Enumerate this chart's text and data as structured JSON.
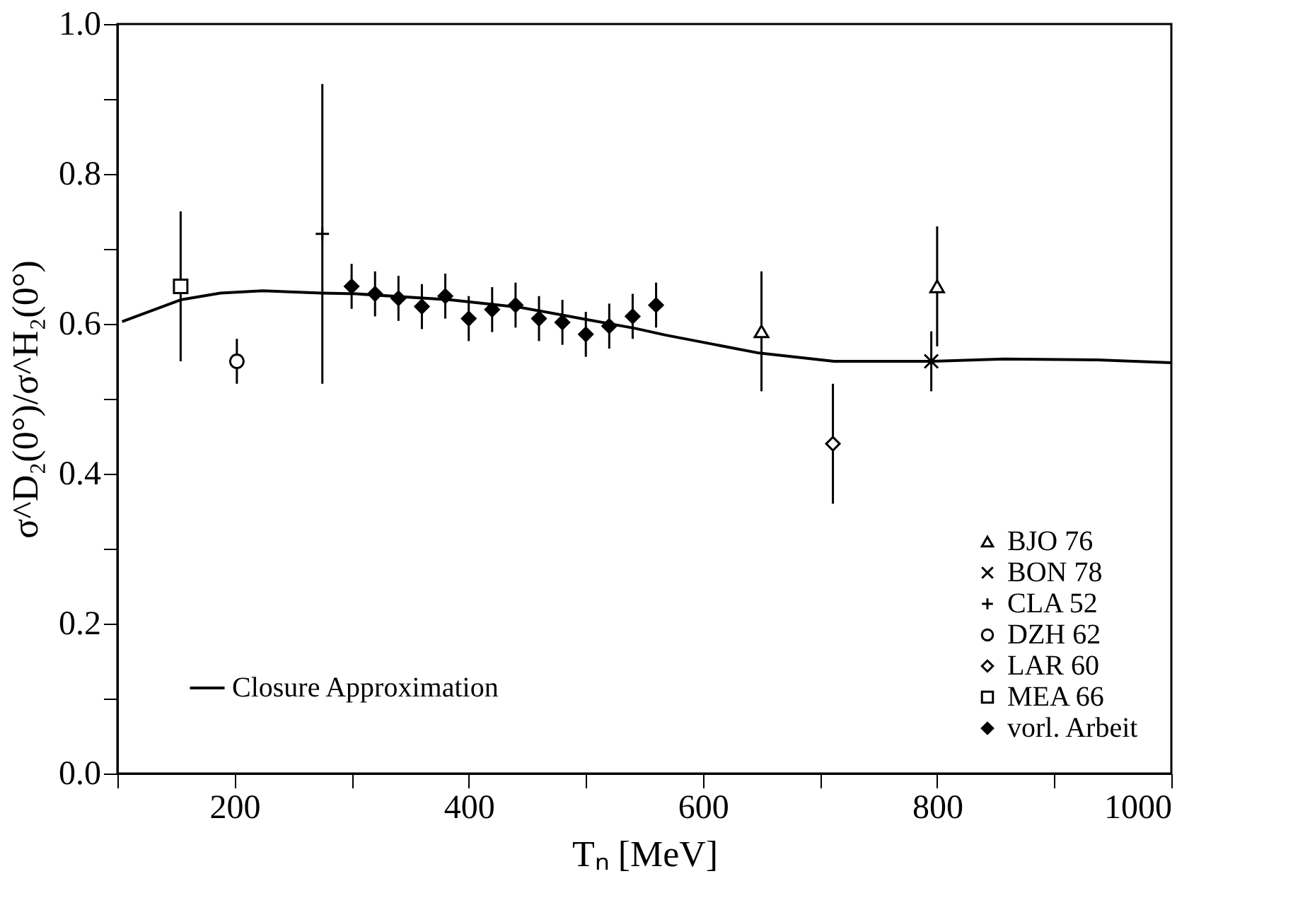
{
  "chart_data": {
    "type": "scatter",
    "xlabel": "Tₙ   [MeV]",
    "ylabel": "σ^D₂(0°)/σ^H₂(0°)",
    "xlim": [
      100,
      1000
    ],
    "ylim": [
      0,
      1
    ],
    "xticks": [
      {
        "value": 100,
        "label": null
      },
      200,
      {
        "value": 300,
        "label": null
      },
      400,
      {
        "value": 500,
        "label": null
      },
      600,
      {
        "value": 700,
        "label": null
      },
      800,
      {
        "value": 900,
        "label": null
      },
      1000
    ],
    "yticks": [
      {
        "value": 0,
        "label": "0.0"
      },
      {
        "value": 0.1,
        "label": null
      },
      0.2,
      {
        "value": 0.3,
        "label": null
      },
      0.4,
      {
        "value": 0.5,
        "label": null
      },
      0.6,
      {
        "value": 0.7,
        "label": null
      },
      0.8,
      {
        "value": 0.9,
        "label": null
      },
      {
        "value": 1,
        "label": "1.0"
      }
    ],
    "grid": false,
    "legend": "bottom right",
    "series": [
      {
        "name": "BJO 76",
        "type": "scatter",
        "marker": "triangle",
        "color": "#000000",
        "x": [
          650,
          800
        ],
        "values": [
          0.59,
          0.65
        ],
        "errors": [
          0.08,
          0.08
        ]
      },
      {
        "name": "BON 78",
        "type": "scatter",
        "marker": "cross",
        "color": "#000000",
        "x": [
          795
        ],
        "values": [
          0.55
        ],
        "errors": [
          0.04
        ]
      },
      {
        "name": "CLA 52",
        "type": "scatter",
        "marker": "plus",
        "color": "#000000",
        "x": [
          275
        ],
        "values": [
          0.72
        ],
        "errors": [
          0.2
        ]
      },
      {
        "name": "DZH 62",
        "type": "scatter",
        "marker": "circle",
        "color": "#000000",
        "x": [
          202
        ],
        "values": [
          0.55
        ],
        "errors": [
          0.03
        ]
      },
      {
        "name": "LAR 60",
        "type": "scatter",
        "marker": "diamond",
        "color": "#000000",
        "x": [
          711
        ],
        "values": [
          0.44
        ],
        "errors": [
          0.08
        ]
      },
      {
        "name": "MEA 66",
        "type": "scatter",
        "marker": "square",
        "color": "#000000",
        "x": [
          154
        ],
        "values": [
          0.65
        ],
        "errors": [
          0.1
        ]
      },
      {
        "name": "vorl. Arbeit",
        "type": "scatter",
        "marker": "diamond_filled",
        "color": "#000000",
        "x": [
          300,
          320,
          340,
          360,
          380,
          400,
          420,
          440,
          460,
          480,
          500,
          520,
          540,
          560
        ],
        "values": [
          0.65,
          0.64,
          0.634,
          0.623,
          0.637,
          0.607,
          0.619,
          0.625,
          0.607,
          0.602,
          0.586,
          0.597,
          0.61,
          0.625
        ],
        "errors": [
          0.03,
          0.03,
          0.03,
          0.03,
          0.03,
          0.03,
          0.03,
          0.03,
          0.03,
          0.03,
          0.03,
          0.03,
          0.03,
          0.03
        ]
      },
      {
        "name": "Closure Approximation",
        "type": "line",
        "line_style": "solid",
        "color": "#000000",
        "x": [
          104,
          154,
          188,
          224,
          274,
          304,
          384,
          444,
          496,
          542,
          568,
          608,
          648,
          712,
          796,
          857,
          937,
          1000
        ],
        "values": [
          0.603,
          0.632,
          0.641,
          0.644,
          0.641,
          0.64,
          0.632,
          0.622,
          0.607,
          0.594,
          0.585,
          0.573,
          0.561,
          0.55,
          0.55,
          0.553,
          0.552,
          0.548
        ]
      }
    ]
  }
}
